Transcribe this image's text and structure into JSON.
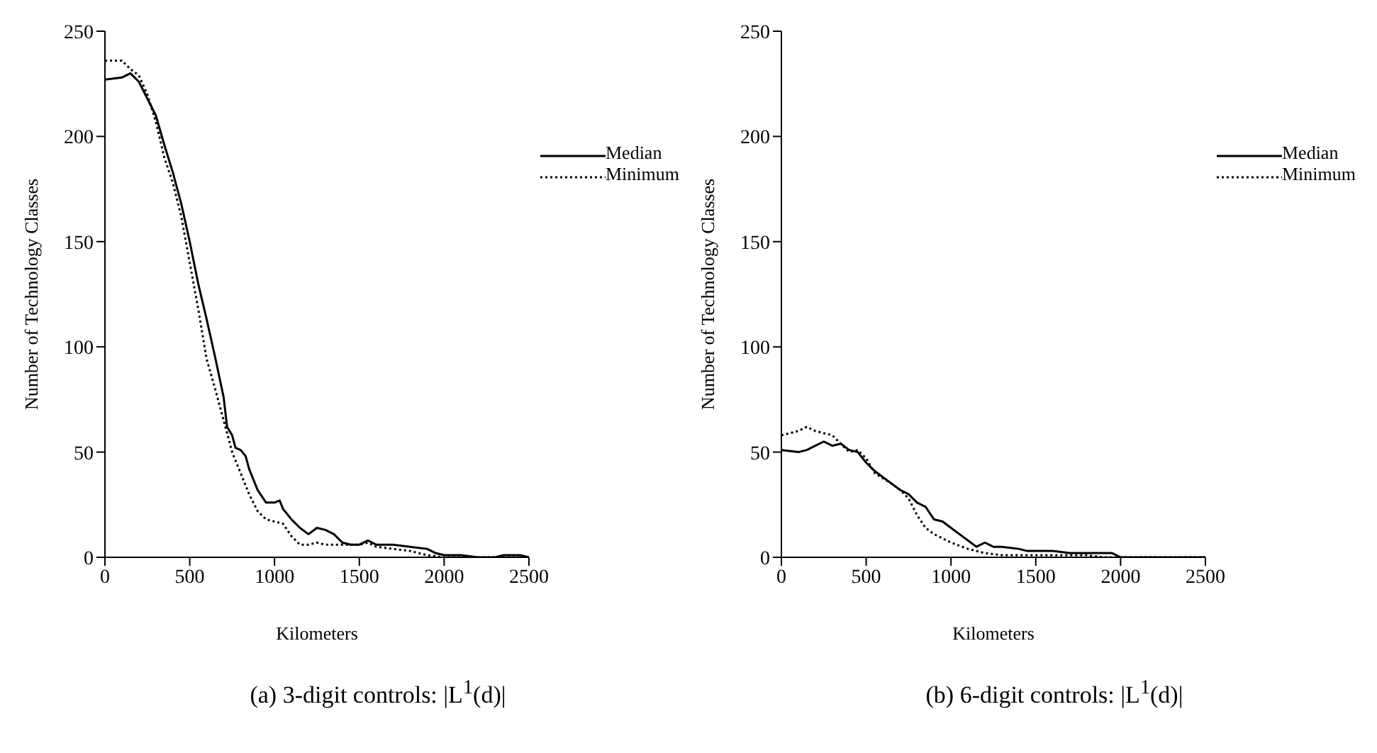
{
  "chart_data": [
    {
      "type": "line",
      "title": "(a) 3-digit controls: |L$^{1}$(d)|",
      "xlabel": "Kilometers",
      "ylabel": "Number of Technology Classes",
      "xlim": [
        0,
        2500
      ],
      "xticks": [
        0,
        500,
        1000,
        1500,
        2000,
        2500
      ],
      "ylim": [
        0,
        250
      ],
      "yticks": [
        0,
        50,
        100,
        150,
        200,
        250
      ],
      "legend": "top right",
      "grid": false,
      "marker": "none",
      "series": [
        {
          "name": "Median",
          "color": "#000000",
          "line_style": "solid",
          "x": [
            0,
            100,
            150,
            200,
            250,
            300,
            350,
            400,
            450,
            500,
            550,
            600,
            650,
            700,
            720,
            750,
            770,
            800,
            830,
            850,
            900,
            950,
            1000,
            1030,
            1050,
            1100,
            1150,
            1200,
            1250,
            1300,
            1350,
            1400,
            1450,
            1500,
            1550,
            1600,
            1700,
            1800,
            1900,
            1950,
            2000,
            2100,
            2200,
            2300,
            2350,
            2450,
            2500
          ],
          "values": [
            227,
            228,
            230,
            226,
            218,
            210,
            196,
            183,
            168,
            150,
            130,
            113,
            95,
            76,
            62,
            58,
            52,
            51,
            48,
            42,
            32,
            26,
            26,
            27,
            23,
            18,
            14,
            11,
            14,
            13,
            11,
            7,
            6,
            6,
            8,
            6,
            6,
            5,
            4,
            2,
            1,
            1,
            0,
            0,
            1,
            1,
            0
          ]
        },
        {
          "name": "Minimum",
          "color": "#000000",
          "line_style": "dotted",
          "x": [
            0,
            50,
            100,
            150,
            200,
            250,
            300,
            350,
            400,
            450,
            500,
            550,
            600,
            650,
            700,
            750,
            800,
            850,
            900,
            950,
            1000,
            1050,
            1100,
            1150,
            1200,
            1250,
            1300,
            1400,
            1500,
            1550,
            1600,
            1700,
            1800,
            1900,
            2000,
            2500
          ],
          "values": [
            236,
            236,
            236,
            232,
            229,
            220,
            207,
            190,
            178,
            162,
            140,
            118,
            94,
            80,
            65,
            50,
            40,
            30,
            22,
            18,
            17,
            16,
            10,
            6,
            6,
            7,
            6,
            6,
            6,
            7,
            5,
            4,
            3,
            1,
            0,
            0
          ]
        }
      ]
    },
    {
      "type": "line",
      "title": "(b) 6-digit controls: |L$^{1}$(d)|",
      "xlabel": "Kilometers",
      "ylabel": "Number of Technology Classes",
      "xlim": [
        0,
        2500
      ],
      "xticks": [
        0,
        500,
        1000,
        1500,
        2000,
        2500
      ],
      "ylim": [
        0,
        250
      ],
      "yticks": [
        0,
        50,
        100,
        150,
        200,
        250
      ],
      "legend": "top right",
      "grid": false,
      "marker": "none",
      "series": [
        {
          "name": "Median",
          "color": "#000000",
          "line_style": "solid",
          "x": [
            0,
            100,
            150,
            200,
            250,
            300,
            350,
            400,
            450,
            500,
            550,
            600,
            650,
            700,
            750,
            800,
            850,
            900,
            950,
            1000,
            1050,
            1100,
            1150,
            1200,
            1250,
            1300,
            1400,
            1450,
            1500,
            1600,
            1700,
            1800,
            1900,
            1950,
            2000,
            2300,
            2350,
            2500
          ],
          "values": [
            51,
            50,
            51,
            53,
            55,
            53,
            54,
            51,
            50,
            45,
            41,
            38,
            35,
            32,
            30,
            26,
            24,
            18,
            17,
            14,
            11,
            8,
            5,
            7,
            5,
            5,
            4,
            3,
            3,
            3,
            2,
            2,
            2,
            2,
            0,
            0,
            0,
            0
          ]
        },
        {
          "name": "Minimum",
          "color": "#000000",
          "line_style": "dotted",
          "x": [
            0,
            100,
            150,
            200,
            300,
            400,
            450,
            500,
            550,
            650,
            700,
            750,
            800,
            850,
            900,
            950,
            1000,
            1100,
            1200,
            1300,
            1400,
            1600,
            1800,
            1900,
            2500
          ],
          "values": [
            58,
            60,
            62,
            60,
            58,
            50,
            51,
            47,
            40,
            35,
            32,
            28,
            20,
            14,
            11,
            9,
            7,
            4,
            2,
            1,
            1,
            1,
            1,
            0,
            0
          ]
        }
      ]
    }
  ]
}
